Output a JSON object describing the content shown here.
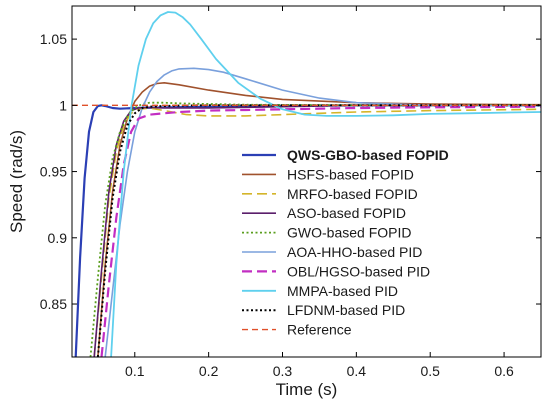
{
  "chart_data": {
    "type": "line",
    "xlabel": "Time (s)",
    "ylabel": "Speed (rad/s)",
    "xlim": [
      0.015,
      0.65
    ],
    "ylim": [
      0.81,
      1.075
    ],
    "xticks": [
      "0.1",
      "0.2",
      "0.3",
      "0.4",
      "0.5",
      "0.6"
    ],
    "xtick_values": [
      0.1,
      0.2,
      0.3,
      0.4,
      0.5,
      0.6
    ],
    "yticks": [
      "0.85",
      "0.9",
      "0.95",
      "1",
      "1.05"
    ],
    "ytick_values": [
      0.85,
      0.9,
      0.95,
      1.0,
      1.05
    ],
    "grid": false,
    "legend_position": "center-right",
    "series": [
      {
        "name": "QWS-GBO-based FOPID",
        "color": "#2b3fb5",
        "dash": "solid",
        "width": 2.2,
        "bold": true,
        "x": [
          0.02,
          0.026,
          0.032,
          0.038,
          0.044,
          0.05,
          0.055,
          0.06,
          0.07,
          0.08,
          0.1,
          0.15,
          0.2,
          0.3,
          0.4,
          0.5,
          0.65
        ],
        "y": [
          0.81,
          0.885,
          0.945,
          0.98,
          0.995,
          0.9995,
          1.0,
          0.9995,
          0.998,
          0.9975,
          0.998,
          0.9985,
          0.999,
          0.9995,
          1.0,
          1.0,
          1.0
        ]
      },
      {
        "name": "HSFS-based FOPID",
        "color": "#a0522d",
        "dash": "solid",
        "width": 1.6,
        "bold": false,
        "x": [
          0.05,
          0.06,
          0.07,
          0.08,
          0.09,
          0.1,
          0.11,
          0.12,
          0.13,
          0.14,
          0.16,
          0.2,
          0.25,
          0.3,
          0.4,
          0.5,
          0.65
        ],
        "y": [
          0.81,
          0.88,
          0.935,
          0.97,
          0.99,
          1.003,
          1.01,
          1.0145,
          1.0165,
          1.017,
          1.0155,
          1.0115,
          1.0075,
          1.0045,
          1.002,
          1.001,
          1.0005
        ]
      },
      {
        "name": "MRFO-based FOPID",
        "color": "#d4b52a",
        "dash": "longdash",
        "width": 1.6,
        "bold": false,
        "x": [
          0.045,
          0.055,
          0.065,
          0.075,
          0.085,
          0.095,
          0.105,
          0.12,
          0.14,
          0.17,
          0.2,
          0.25,
          0.3,
          0.35,
          0.4,
          0.5,
          0.65
        ],
        "y": [
          0.81,
          0.87,
          0.93,
          0.965,
          0.985,
          0.994,
          0.997,
          0.998,
          0.996,
          0.993,
          0.992,
          0.992,
          0.993,
          0.994,
          0.995,
          0.996,
          0.997
        ]
      },
      {
        "name": "ASO-based FOPID",
        "color": "#5b1f6b",
        "dash": "solid",
        "width": 1.6,
        "bold": false,
        "x": [
          0.045,
          0.055,
          0.065,
          0.075,
          0.085,
          0.095,
          0.105,
          0.12,
          0.14,
          0.17,
          0.2,
          0.25,
          0.3,
          0.35,
          0.4,
          0.5,
          0.65
        ],
        "y": [
          0.81,
          0.875,
          0.935,
          0.97,
          0.988,
          0.996,
          0.998,
          0.9985,
          0.998,
          0.998,
          0.998,
          0.9985,
          0.999,
          0.9995,
          1.0,
          1.0,
          1.0
        ]
      },
      {
        "name": "GWO-based FOPID",
        "color": "#5a9e1e",
        "dash": "dotted",
        "width": 1.8,
        "bold": false,
        "x": [
          0.04,
          0.05,
          0.06,
          0.07,
          0.08,
          0.09,
          0.1,
          0.11,
          0.12,
          0.14,
          0.16,
          0.2,
          0.25,
          0.3,
          0.4,
          0.5,
          0.65
        ],
        "y": [
          0.81,
          0.87,
          0.925,
          0.96,
          0.98,
          0.992,
          0.998,
          1.001,
          1.002,
          1.002,
          1.0015,
          1.001,
          1.0005,
          1.0003,
          1.0001,
          1.0,
          1.0
        ]
      },
      {
        "name": "AOA-HHO-based PID",
        "color": "#7aa0dc",
        "dash": "solid",
        "width": 1.6,
        "bold": false,
        "x": [
          0.06,
          0.07,
          0.08,
          0.09,
          0.1,
          0.11,
          0.12,
          0.13,
          0.14,
          0.15,
          0.16,
          0.18,
          0.2,
          0.22,
          0.25,
          0.3,
          0.35,
          0.4,
          0.5,
          0.65
        ],
        "y": [
          0.81,
          0.86,
          0.91,
          0.95,
          0.98,
          0.998,
          1.01,
          1.018,
          1.023,
          1.026,
          1.0275,
          1.028,
          1.027,
          1.025,
          1.02,
          1.0115,
          1.0055,
          1.002,
          1.0,
          0.9995
        ]
      },
      {
        "name": "OBL/HGSO-based PID",
        "color": "#c22ec2",
        "dash": "longdash",
        "width": 2.2,
        "bold": false,
        "x": [
          0.055,
          0.065,
          0.075,
          0.085,
          0.095,
          0.105,
          0.12,
          0.14,
          0.16,
          0.2,
          0.25,
          0.3,
          0.4,
          0.5,
          0.65
        ],
        "y": [
          0.81,
          0.865,
          0.915,
          0.955,
          0.98,
          0.99,
          0.993,
          0.994,
          0.995,
          0.996,
          0.9965,
          0.997,
          0.998,
          0.9985,
          0.999
        ]
      },
      {
        "name": "MMPA-based PID",
        "color": "#5fd0ee",
        "dash": "solid",
        "width": 1.8,
        "bold": false,
        "x": [
          0.068,
          0.075,
          0.085,
          0.095,
          0.105,
          0.115,
          0.125,
          0.135,
          0.145,
          0.155,
          0.165,
          0.175,
          0.19,
          0.21,
          0.24,
          0.27,
          0.3,
          0.33,
          0.36,
          0.4,
          0.45,
          0.5,
          0.55,
          0.6,
          0.65
        ],
        "y": [
          0.81,
          0.88,
          0.95,
          0.998,
          1.03,
          1.05,
          1.062,
          1.068,
          1.0705,
          1.07,
          1.0665,
          1.061,
          1.05,
          1.035,
          1.017,
          1.005,
          0.997,
          0.993,
          0.992,
          0.992,
          0.9925,
          0.9935,
          0.994,
          0.9945,
          0.995
        ]
      },
      {
        "name": "LFDNM-based PID",
        "color": "#000000",
        "dash": "dotted",
        "width": 2.0,
        "bold": false,
        "x": [
          0.05,
          0.06,
          0.07,
          0.08,
          0.09,
          0.1,
          0.11,
          0.12,
          0.14,
          0.16,
          0.2,
          0.25,
          0.3,
          0.4,
          0.5,
          0.65
        ],
        "y": [
          0.81,
          0.875,
          0.93,
          0.965,
          0.985,
          0.994,
          0.998,
          0.999,
          0.9995,
          0.9998,
          1.0,
          1.0,
          1.0,
          1.0,
          1.0,
          1.0
        ]
      },
      {
        "name": "Reference",
        "color": "#e0502a",
        "dash": "dashed",
        "width": 1.4,
        "bold": false,
        "x": [
          0.015,
          0.65
        ],
        "y": [
          1.0,
          1.0
        ]
      }
    ]
  }
}
